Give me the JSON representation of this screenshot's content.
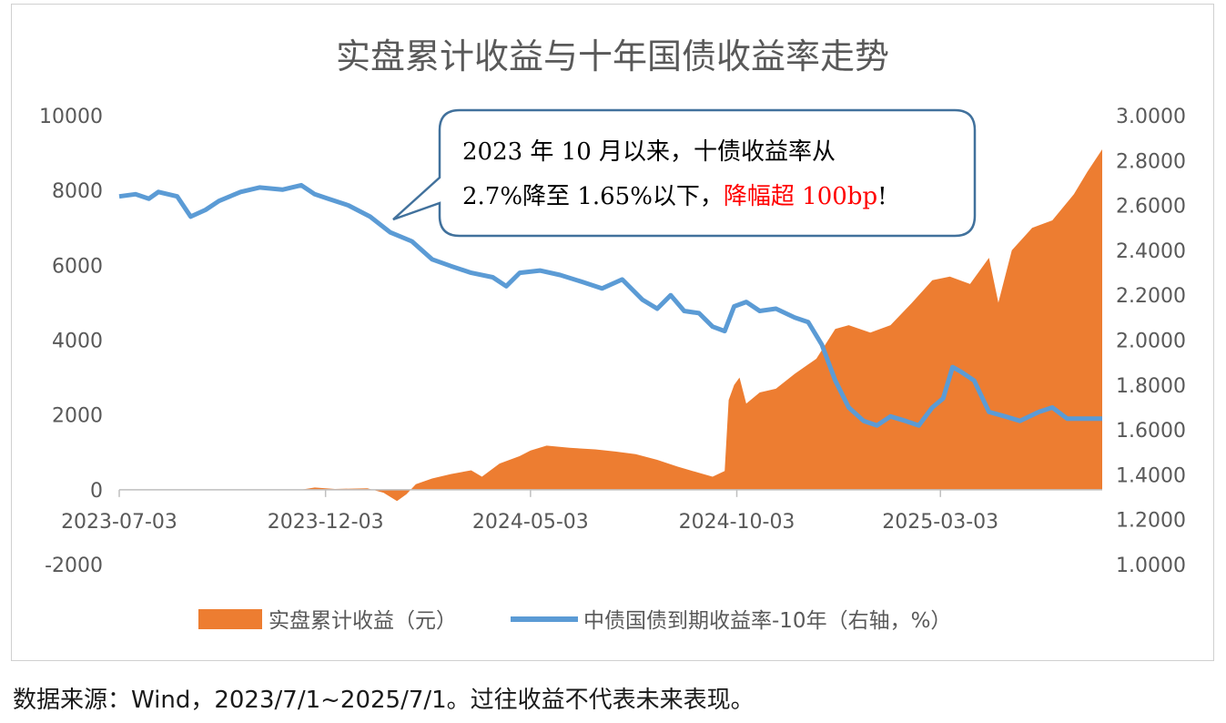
{
  "chart_data": {
    "type": "area+line",
    "title": "实盘累计收益与十年国债收益率走势",
    "x_ticks": [
      "2023-07-03",
      "2023-12-03",
      "2024-05-03",
      "2024-10-03",
      "2025-03-03"
    ],
    "x_range": [
      "2023-07-03",
      "2025-07-01"
    ],
    "y_left": {
      "ticks": [
        "10000",
        "8000",
        "6000",
        "4000",
        "2000",
        "0",
        "-2000"
      ],
      "range": [
        -2000,
        10000
      ]
    },
    "y_right": {
      "ticks": [
        "3.0000",
        "2.8000",
        "2.6000",
        "2.4000",
        "2.2000",
        "2.0000",
        "1.8000",
        "1.6000",
        "1.4000",
        "1.2000",
        "1.0000"
      ],
      "range": [
        1.0,
        3.0
      ]
    },
    "grid": false,
    "legend_position": "bottom",
    "series": [
      {
        "name": "实盘累计收益（元）",
        "type": "area",
        "axis": "left",
        "color": "#ED7D31",
        "points": [
          [
            "2023-07-03",
            0
          ],
          [
            "2023-09-01",
            0
          ],
          [
            "2023-11-15",
            0
          ],
          [
            "2023-11-25",
            60
          ],
          [
            "2023-12-10",
            20
          ],
          [
            "2024-01-03",
            40
          ],
          [
            "2024-01-15",
            -80
          ],
          [
            "2024-01-25",
            -300
          ],
          [
            "2024-02-01",
            -120
          ],
          [
            "2024-02-08",
            150
          ],
          [
            "2024-02-20",
            300
          ],
          [
            "2024-03-05",
            420
          ],
          [
            "2024-03-20",
            520
          ],
          [
            "2024-03-28",
            350
          ],
          [
            "2024-04-10",
            700
          ],
          [
            "2024-04-25",
            900
          ],
          [
            "2024-05-03",
            1050
          ],
          [
            "2024-05-15",
            1180
          ],
          [
            "2024-06-01",
            1120
          ],
          [
            "2024-06-20",
            1080
          ],
          [
            "2024-07-05",
            1020
          ],
          [
            "2024-07-20",
            950
          ],
          [
            "2024-08-05",
            800
          ],
          [
            "2024-08-20",
            620
          ],
          [
            "2024-09-05",
            450
          ],
          [
            "2024-09-15",
            350
          ],
          [
            "2024-09-24",
            500
          ],
          [
            "2024-09-27",
            2400
          ],
          [
            "2024-10-01",
            2800
          ],
          [
            "2024-10-05",
            3000
          ],
          [
            "2024-10-10",
            2300
          ],
          [
            "2024-10-20",
            2600
          ],
          [
            "2024-11-01",
            2700
          ],
          [
            "2024-11-15",
            3100
          ],
          [
            "2024-12-01",
            3500
          ],
          [
            "2024-12-15",
            4300
          ],
          [
            "2024-12-25",
            4400
          ],
          [
            "2025-01-10",
            4200
          ],
          [
            "2025-01-25",
            4400
          ],
          [
            "2025-02-10",
            5000
          ],
          [
            "2025-02-25",
            5600
          ],
          [
            "2025-03-10",
            5700
          ],
          [
            "2025-03-25",
            5500
          ],
          [
            "2025-04-08",
            6200
          ],
          [
            "2025-04-15",
            5000
          ],
          [
            "2025-04-25",
            6400
          ],
          [
            "2025-05-10",
            7000
          ],
          [
            "2025-05-25",
            7200
          ],
          [
            "2025-06-10",
            7900
          ],
          [
            "2025-06-20",
            8500
          ],
          [
            "2025-07-01",
            9100
          ]
        ]
      },
      {
        "name": "中债国债到期收益率-10年（右轴，%）",
        "type": "line",
        "axis": "right",
        "color": "#5B9BD5",
        "points": [
          [
            "2023-07-03",
            2.64
          ],
          [
            "2023-07-15",
            2.65
          ],
          [
            "2023-07-25",
            2.63
          ],
          [
            "2023-08-01",
            2.66
          ],
          [
            "2023-08-15",
            2.64
          ],
          [
            "2023-08-25",
            2.55
          ],
          [
            "2023-09-05",
            2.58
          ],
          [
            "2023-09-15",
            2.62
          ],
          [
            "2023-10-01",
            2.66
          ],
          [
            "2023-10-15",
            2.68
          ],
          [
            "2023-11-01",
            2.67
          ],
          [
            "2023-11-15",
            2.69
          ],
          [
            "2023-11-25",
            2.65
          ],
          [
            "2023-12-05",
            2.63
          ],
          [
            "2023-12-20",
            2.6
          ],
          [
            "2024-01-05",
            2.55
          ],
          [
            "2024-01-20",
            2.48
          ],
          [
            "2024-02-05",
            2.44
          ],
          [
            "2024-02-20",
            2.36
          ],
          [
            "2024-03-05",
            2.33
          ],
          [
            "2024-03-20",
            2.3
          ],
          [
            "2024-04-05",
            2.28
          ],
          [
            "2024-04-15",
            2.24
          ],
          [
            "2024-04-25",
            2.3
          ],
          [
            "2024-05-10",
            2.31
          ],
          [
            "2024-05-25",
            2.29
          ],
          [
            "2024-06-10",
            2.26
          ],
          [
            "2024-06-25",
            2.23
          ],
          [
            "2024-07-10",
            2.27
          ],
          [
            "2024-07-25",
            2.18
          ],
          [
            "2024-08-05",
            2.14
          ],
          [
            "2024-08-15",
            2.2
          ],
          [
            "2024-08-25",
            2.13
          ],
          [
            "2024-09-05",
            2.12
          ],
          [
            "2024-09-15",
            2.06
          ],
          [
            "2024-09-24",
            2.04
          ],
          [
            "2024-10-01",
            2.15
          ],
          [
            "2024-10-10",
            2.17
          ],
          [
            "2024-10-20",
            2.13
          ],
          [
            "2024-11-01",
            2.14
          ],
          [
            "2024-11-15",
            2.1
          ],
          [
            "2024-11-25",
            2.08
          ],
          [
            "2024-12-05",
            1.98
          ],
          [
            "2024-12-15",
            1.82
          ],
          [
            "2024-12-25",
            1.7
          ],
          [
            "2025-01-05",
            1.64
          ],
          [
            "2025-01-15",
            1.62
          ],
          [
            "2025-01-25",
            1.66
          ],
          [
            "2025-02-05",
            1.64
          ],
          [
            "2025-02-15",
            1.62
          ],
          [
            "2025-02-25",
            1.7
          ],
          [
            "2025-03-05",
            1.74
          ],
          [
            "2025-03-12",
            1.88
          ],
          [
            "2025-03-18",
            1.86
          ],
          [
            "2025-03-28",
            1.82
          ],
          [
            "2025-04-08",
            1.68
          ],
          [
            "2025-04-20",
            1.66
          ],
          [
            "2025-05-01",
            1.64
          ],
          [
            "2025-05-15",
            1.68
          ],
          [
            "2025-05-25",
            1.7
          ],
          [
            "2025-06-05",
            1.65
          ],
          [
            "2025-06-20",
            1.65
          ],
          [
            "2025-07-01",
            1.65
          ]
        ]
      }
    ]
  },
  "callout": {
    "line1": "2023 年 10 月以来，十债收益率从",
    "line2_black": "2.7%降至 1.65%以下，",
    "line2_red": "降幅超 100bp",
    "line2_end": "!",
    "accent": "#ff0000",
    "border": "#41719C"
  },
  "source_note": "数据来源：Wind，2023/7/1~2025/7/1。过往收益不代表未来表现。"
}
